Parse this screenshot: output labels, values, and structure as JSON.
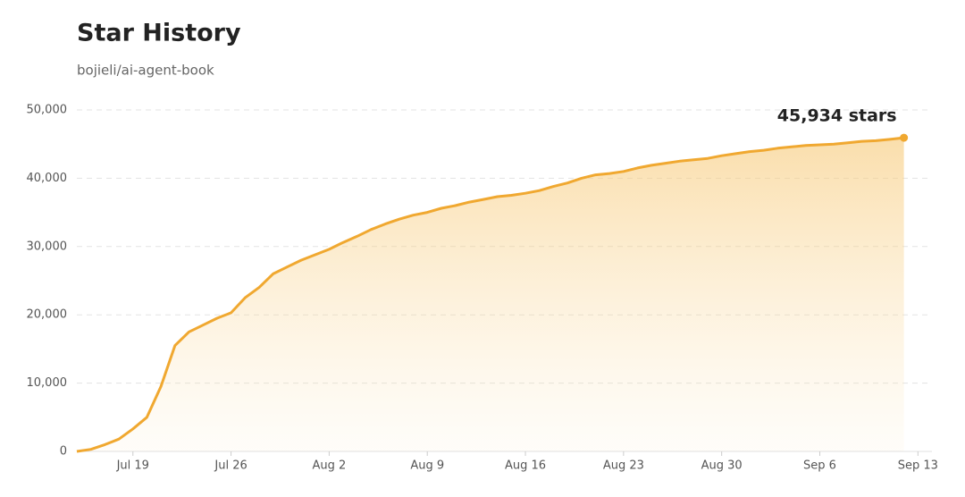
{
  "chart_data": {
    "type": "area",
    "title": "Star History",
    "subtitle": "bojieli/ai-agent-book",
    "annotation": "45,934 stars",
    "x": [
      196,
      197,
      198,
      199,
      200,
      201,
      202,
      203,
      204,
      205,
      206,
      207,
      208,
      209,
      210,
      211,
      212,
      213,
      214,
      215,
      216,
      217,
      218,
      219,
      220,
      221,
      222,
      223,
      224,
      225,
      226,
      227,
      228,
      229,
      230,
      231,
      232,
      233,
      234,
      235,
      236,
      237,
      238,
      239,
      240,
      241,
      242,
      243,
      244,
      245,
      246,
      247,
      248,
      249,
      250,
      251,
      252,
      253,
      254,
      255
    ],
    "series": [
      {
        "name": "bojieli/ai-agent-book",
        "color": "#f0a830",
        "values": [
          0,
          300,
          1000,
          1800,
          3300,
          5000,
          9500,
          15500,
          17500,
          18500,
          19500,
          20300,
          22500,
          24000,
          26000,
          27000,
          28000,
          28800,
          29600,
          30600,
          31500,
          32500,
          33300,
          34000,
          34600,
          35000,
          35600,
          36000,
          36500,
          36900,
          37300,
          37500,
          37800,
          38200,
          38800,
          39300,
          40000,
          40500,
          40700,
          41000,
          41500,
          41900,
          42200,
          42500,
          42700,
          42900,
          43300,
          43600,
          43900,
          44100,
          44400,
          44600,
          44800,
          44900,
          45000,
          45200,
          45400,
          45500,
          45700,
          45934
        ]
      }
    ],
    "xlim": [
      196,
      257
    ],
    "xticks": [
      {
        "value": 200,
        "label": "Jul 19"
      },
      {
        "value": 207,
        "label": "Jul 26"
      },
      {
        "value": 214,
        "label": "Aug 2"
      },
      {
        "value": 221,
        "label": "Aug 9"
      },
      {
        "value": 228,
        "label": "Aug 16"
      },
      {
        "value": 235,
        "label": "Aug 23"
      },
      {
        "value": 242,
        "label": "Aug 30"
      },
      {
        "value": 249,
        "label": "Sep 6"
      },
      {
        "value": 256,
        "label": "Sep 13"
      }
    ],
    "ylim": [
      0,
      50000
    ],
    "yticks": [
      0,
      {
        "value": 10000,
        "label": "10,000"
      },
      {
        "value": 20000,
        "label": "20,000"
      },
      {
        "value": 30000,
        "label": "30,000"
      },
      {
        "value": 40000,
        "label": "40,000"
      },
      {
        "value": 50000,
        "label": "50,000"
      }
    ],
    "grid": true
  }
}
